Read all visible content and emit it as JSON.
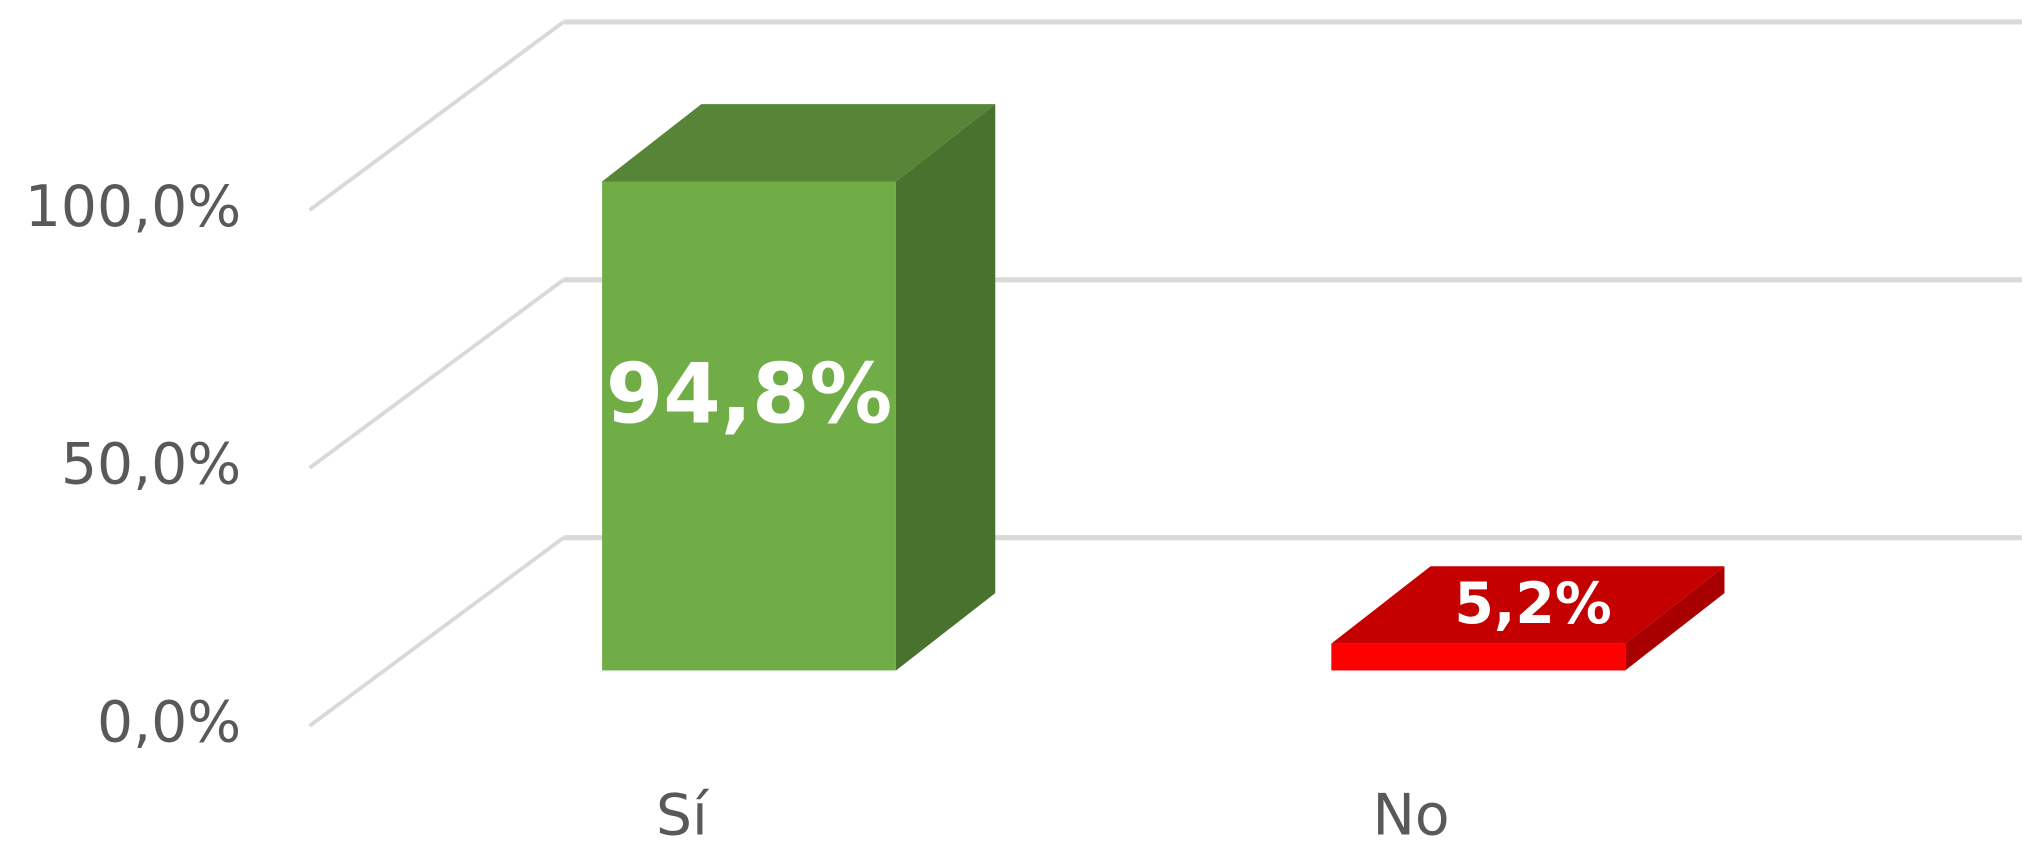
{
  "chart_data": {
    "type": "bar3d",
    "categories": [
      "Sí",
      "No"
    ],
    "values": [
      94.8,
      5.2
    ],
    "value_labels": [
      "94,8%",
      "5,2%"
    ],
    "colors": [
      "#70ad47",
      "#ff0000"
    ],
    "ylim": [
      0,
      100
    ],
    "yticks": [
      {
        "value": 0,
        "label": "0,0%"
      },
      {
        "value": 50,
        "label": "50,0%"
      },
      {
        "value": 100,
        "label": "100,0%"
      }
    ],
    "grid": true
  }
}
